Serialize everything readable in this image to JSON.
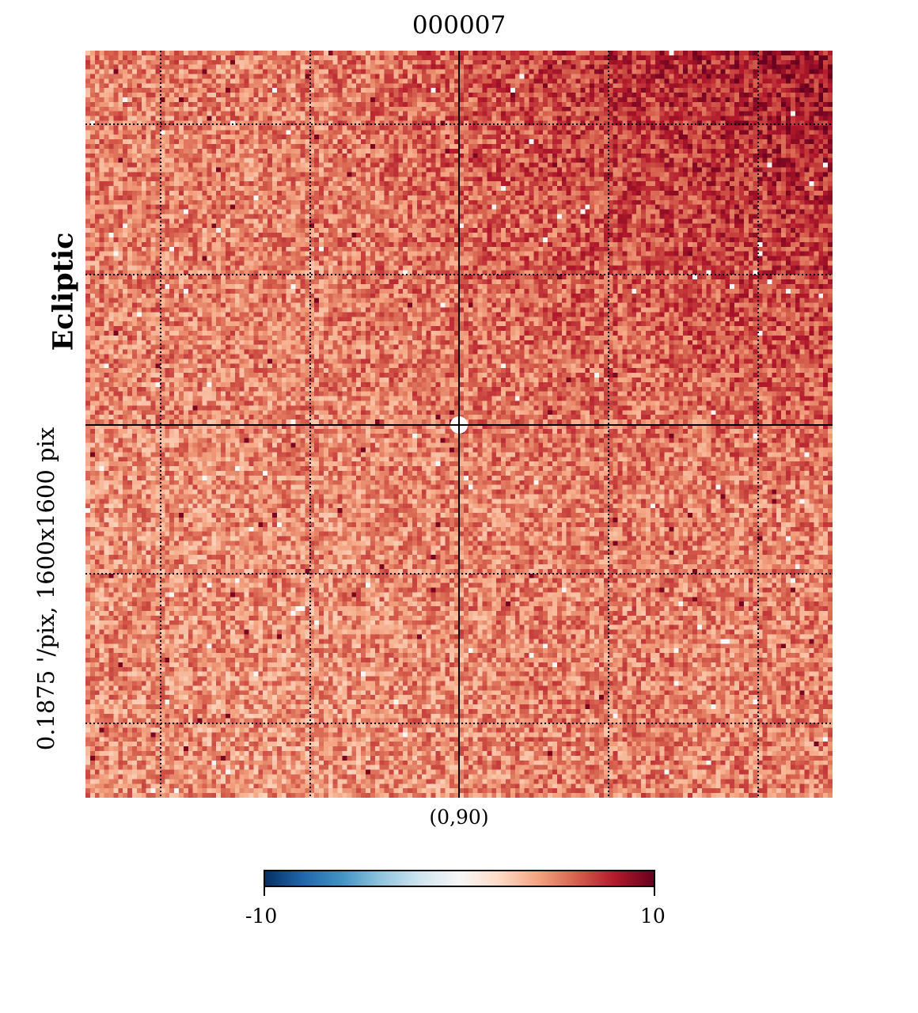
{
  "title": "000007",
  "center_coord_label": "(0,90)",
  "frame_label": "Ecliptic",
  "resolution_label": "0.1875 '/pix,   1600x1600 pix",
  "colorbar": {
    "min_label": "-10",
    "max_label": "10",
    "cmap": "RdBu_r",
    "colors": [
      "#053061",
      "#2166ac",
      "#4393c3",
      "#92c5de",
      "#d1e5f0",
      "#f7f7f7",
      "#fddbc7",
      "#f4a582",
      "#d6604d",
      "#b2182b",
      "#67001f"
    ]
  },
  "chart_data": {
    "type": "heatmap",
    "title": "000007",
    "projection": "gnomonic",
    "coord": "Ecliptic",
    "center": "(0,90)",
    "resolution_arcmin_per_pix": 0.1875,
    "size_pix": [
      1600,
      1600
    ],
    "vmin": -10,
    "vmax": 10,
    "typical_value_range": [
      3,
      7
    ],
    "grid": "dotted graticule with solid crosshair through center",
    "colorbar_placement": "bottom"
  }
}
